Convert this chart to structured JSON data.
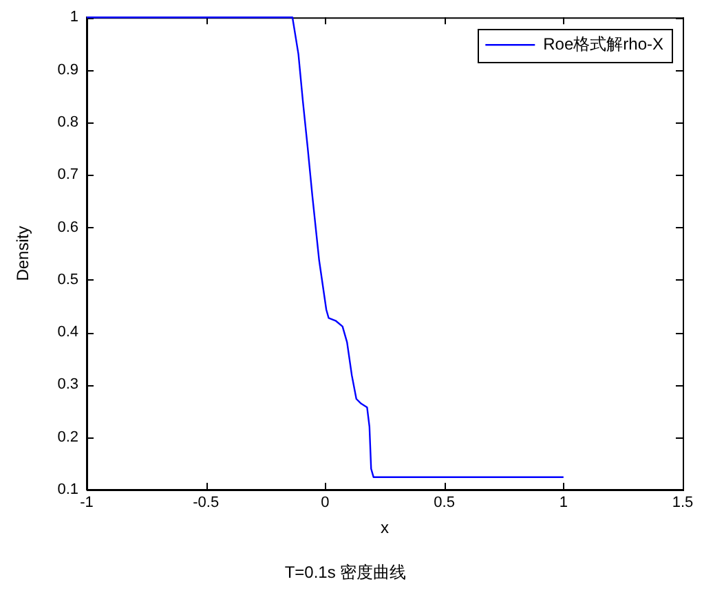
{
  "chart_data": {
    "type": "line",
    "title": "T=0.1s 密度曲线",
    "xlabel": "x",
    "ylabel": "Density",
    "series": [
      {
        "name": "Roe格式解rho-X",
        "color": "#0000ff",
        "x": [
          -1,
          -0.137,
          -0.112,
          -0.093,
          -0.073,
          -0.054,
          -0.025,
          0.005,
          0.015,
          0.044,
          0.073,
          0.092,
          0.112,
          0.131,
          0.151,
          0.176,
          0.186,
          0.193,
          0.203,
          1
        ],
        "values": [
          1,
          1,
          0.93,
          0.839,
          0.751,
          0.662,
          0.537,
          0.443,
          0.427,
          0.422,
          0.411,
          0.381,
          0.318,
          0.273,
          0.264,
          0.257,
          0.22,
          0.14,
          0.124,
          0.124
        ]
      }
    ],
    "xlim": [
      -1,
      1.5
    ],
    "xticks": [
      -1,
      -0.5,
      0,
      0.5,
      1,
      1.5
    ],
    "ylim": [
      0.1,
      1
    ],
    "yticks": [
      0.1,
      0.2,
      0.3,
      0.4,
      0.5,
      0.6,
      0.7,
      0.8,
      0.9,
      1
    ],
    "grid": false,
    "legend": "top right",
    "marker": "none",
    "line_style": "solid"
  }
}
